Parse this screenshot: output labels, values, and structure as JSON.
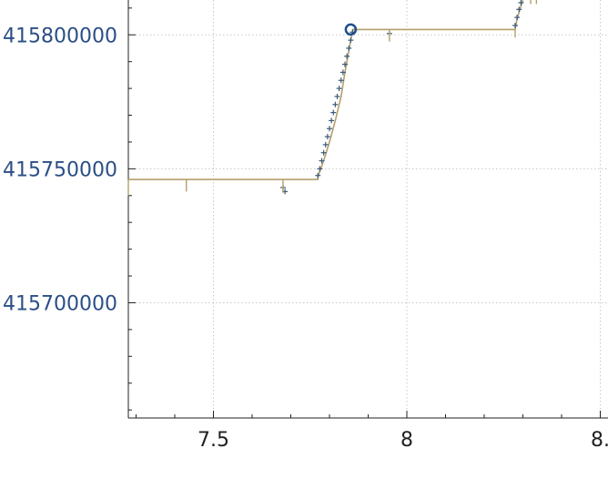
{
  "chart_data": {
    "type": "line",
    "xlim": [
      7.28,
      8.52
    ],
    "ylim": [
      415657000,
      415813000
    ],
    "x_ticks": [
      {
        "value": 7.5,
        "label": "7.5"
      },
      {
        "value": 8.0,
        "label": "8"
      },
      {
        "value": 8.5,
        "label": "8."
      }
    ],
    "y_ticks": [
      {
        "value": 415800000,
        "label": "415800000"
      },
      {
        "value": 415750000,
        "label": "415750000"
      },
      {
        "value": 415700000,
        "label": "415700000"
      }
    ],
    "grid": true,
    "colors": {
      "step_line": "#b59f6b",
      "markers": "#3b5a78",
      "highlight": "#1f4e8c",
      "y_labels": "#2b4f86"
    },
    "series": [
      {
        "kind": "step-line",
        "points": [
          [
            7.28,
            415746000
          ],
          [
            7.77,
            415746000
          ],
          [
            7.77,
            415747000
          ],
          [
            7.785,
            415753000
          ],
          [
            7.8,
            415760000
          ],
          [
            7.815,
            415768000
          ],
          [
            7.83,
            415777000
          ],
          [
            7.84,
            415786000
          ],
          [
            7.85,
            415794000
          ],
          [
            7.86,
            415802000
          ],
          [
            8.28,
            415802000
          ],
          [
            8.285,
            415806000
          ],
          [
            8.3,
            415813000
          ]
        ]
      },
      {
        "kind": "cross-markers",
        "points": [
          [
            7.685,
            415741500
          ],
          [
            7.68,
            415743000
          ],
          [
            7.77,
            415747500
          ],
          [
            7.775,
            415750000
          ],
          [
            7.78,
            415753000
          ],
          [
            7.785,
            415756000
          ],
          [
            7.79,
            415759000
          ],
          [
            7.795,
            415762000
          ],
          [
            7.8,
            415765000
          ],
          [
            7.805,
            415768000
          ],
          [
            7.81,
            415771000
          ],
          [
            7.815,
            415774000
          ],
          [
            7.82,
            415777000
          ],
          [
            7.825,
            415780000
          ],
          [
            7.83,
            415783000
          ],
          [
            7.835,
            415786000
          ],
          [
            7.84,
            415789000
          ],
          [
            7.845,
            415792000
          ],
          [
            7.85,
            415795000
          ],
          [
            7.855,
            415798000
          ],
          [
            7.86,
            415801000
          ],
          [
            7.955,
            415800500
          ],
          [
            8.28,
            415803500
          ],
          [
            8.285,
            415806500
          ],
          [
            8.29,
            415809500
          ],
          [
            8.295,
            415812000
          ]
        ]
      },
      {
        "kind": "error-spikes",
        "points": [
          [
            7.28,
            415746000,
            415740000
          ],
          [
            7.43,
            415746000,
            415741500
          ],
          [
            7.68,
            415746000,
            415741000
          ],
          [
            7.955,
            415802000,
            415797500
          ],
          [
            8.28,
            415802000,
            415799000
          ],
          [
            8.32,
            415813000,
            415811500
          ],
          [
            8.335,
            415813000,
            415811500
          ]
        ]
      },
      {
        "kind": "highlight",
        "points": [
          [
            7.855,
            415802000
          ]
        ]
      }
    ]
  }
}
